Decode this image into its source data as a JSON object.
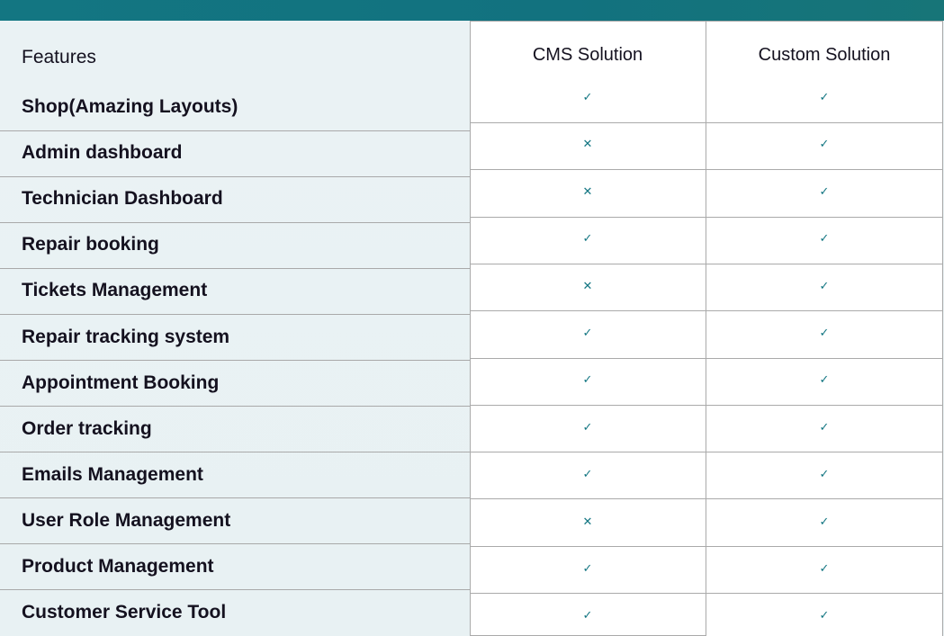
{
  "header": {
    "features": "Features",
    "columns": [
      "CMS Solution",
      "Custom Solution"
    ]
  },
  "colors": {
    "accent": "#137682",
    "band": "#12727f"
  },
  "icons": {
    "yes": "check-icon",
    "no": "cross-icon"
  },
  "rows": [
    {
      "feature": "Shop(Amazing Layouts)",
      "cms": true,
      "custom": true
    },
    {
      "feature": "Admin dashboard",
      "cms": false,
      "custom": true
    },
    {
      "feature": "Technician Dashboard",
      "cms": false,
      "custom": true
    },
    {
      "feature": "Repair booking",
      "cms": true,
      "custom": true
    },
    {
      "feature": "Tickets Management",
      "cms": false,
      "custom": true
    },
    {
      "feature": "Repair tracking system",
      "cms": true,
      "custom": true
    },
    {
      "feature": "Appointment Booking",
      "cms": true,
      "custom": true
    },
    {
      "feature": "Order tracking",
      "cms": true,
      "custom": true
    },
    {
      "feature": "Emails Management",
      "cms": true,
      "custom": true
    },
    {
      "feature": "User Role Management",
      "cms": false,
      "custom": true
    },
    {
      "feature": "Product Management",
      "cms": true,
      "custom": true
    },
    {
      "feature": "Customer Service Tool",
      "cms": true,
      "custom": true
    }
  ]
}
